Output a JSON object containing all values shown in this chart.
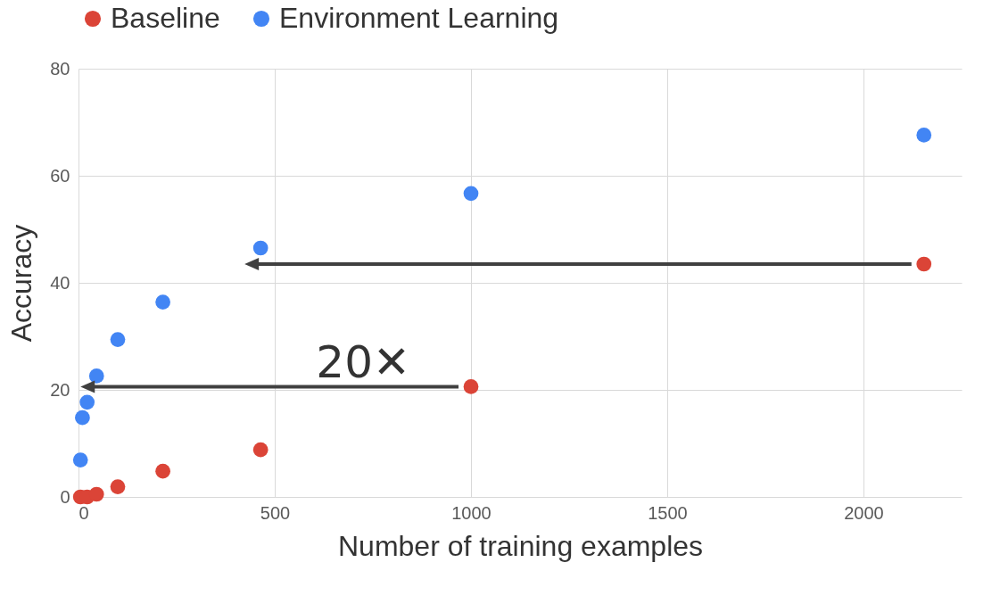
{
  "chart_data": {
    "type": "scatter",
    "xlabel": "Number of training examples",
    "ylabel": "Accuracy",
    "x": [
      5,
      10,
      22,
      46,
      100,
      215,
      464,
      1000,
      2154
    ],
    "series": [
      {
        "name": "Baseline",
        "color": "#db4437",
        "values": [
          0,
          null,
          0,
          0.5,
          1.9,
          4.8,
          8.8,
          20.6,
          43.5
        ]
      },
      {
        "name": "Environment Learning",
        "color": "#4285f4",
        "values": [
          6.9,
          14.8,
          17.7,
          22.6,
          29.4,
          36.4,
          46.5,
          56.7,
          67.6
        ]
      }
    ],
    "xlim": [
      0,
      2250
    ],
    "xticks": [
      0,
      500,
      1000,
      1500,
      2000
    ],
    "ylim": [
      0,
      80
    ],
    "yticks": [
      0,
      20,
      40,
      60,
      80
    ],
    "grid": true,
    "legend": "top",
    "marker": "circle",
    "annotations": [
      "20✕"
    ]
  }
}
